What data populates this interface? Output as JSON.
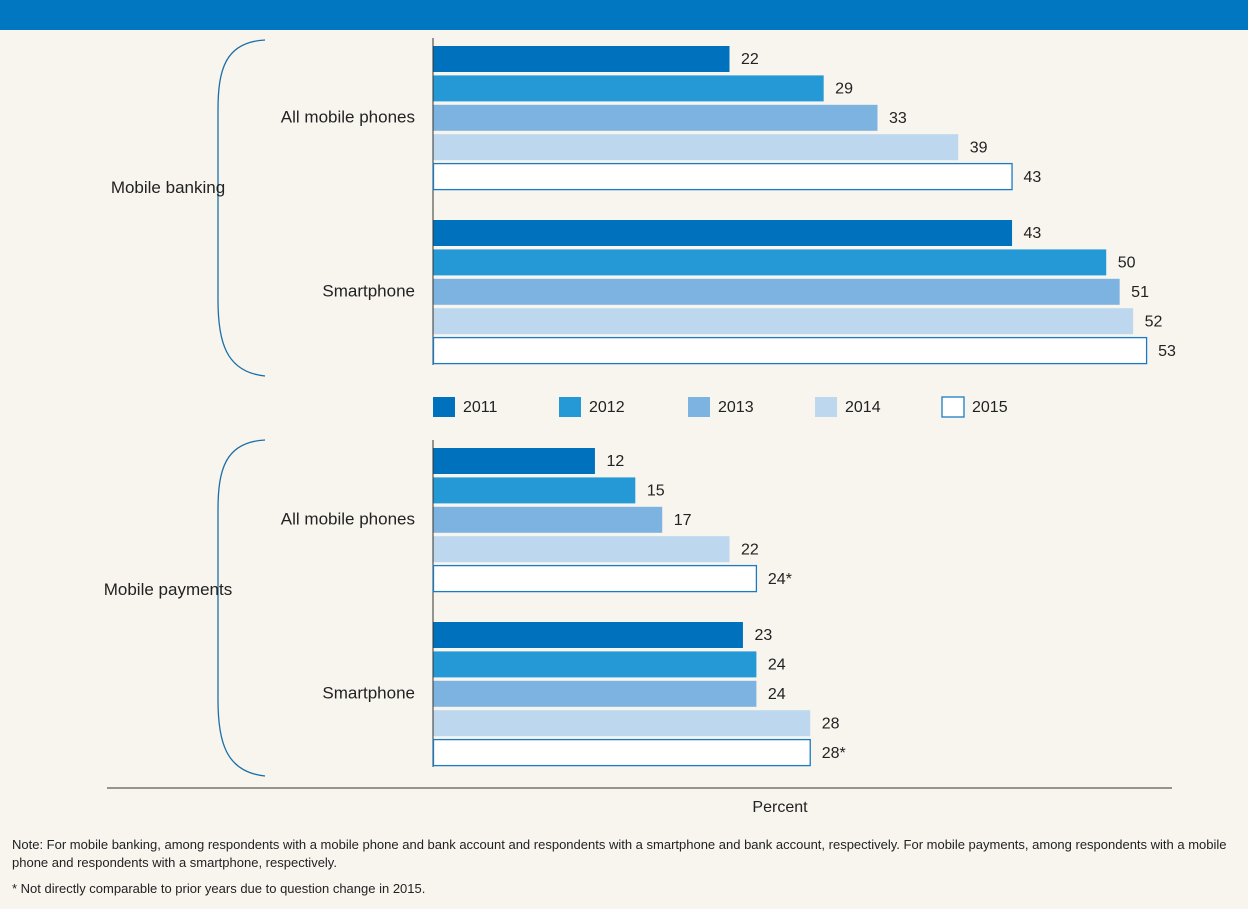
{
  "chart_data": {
    "type": "bar",
    "orientation": "horizontal",
    "groups": [
      {
        "label": "Mobile banking",
        "categories": [
          "All mobile phones",
          "Smartphone"
        ]
      },
      {
        "label": "Mobile payments",
        "categories": [
          "All mobile phones",
          "Smartphone"
        ]
      }
    ],
    "series": [
      {
        "name": "2011",
        "color": "#0071bc",
        "values": [
          22,
          43,
          12,
          23
        ]
      },
      {
        "name": "2012",
        "color": "#2499d6",
        "values": [
          29,
          50,
          15,
          24
        ]
      },
      {
        "name": "2013",
        "color": "#7db3e0",
        "values": [
          33,
          51,
          17,
          24
        ]
      },
      {
        "name": "2014",
        "color": "#bdd7ef",
        "values": [
          39,
          52,
          22,
          28
        ]
      },
      {
        "name": "2015",
        "color": "#ffffff",
        "edge_color": "#1a7bc4",
        "values": [
          43,
          53,
          24,
          28
        ],
        "value_labels": [
          "43",
          "53",
          "24*",
          "28*"
        ]
      }
    ],
    "xlim": [
      0,
      55
    ],
    "x_label": "Percent",
    "notes": [
      "Note: For mobile banking, among respondents with a mobile phone and bank account and respondents with a smartphone and bank account, respectively. For mobile payments, among respondents with a mobile phone and respondents with a smartphone, respectively.",
      "* Not directly comparable to prior years due to question change in 2015."
    ]
  }
}
